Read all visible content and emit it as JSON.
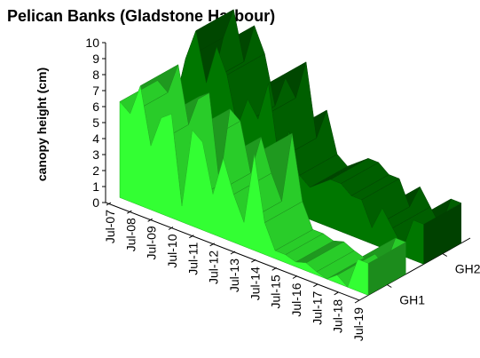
{
  "chart_data": {
    "type": "area3d",
    "title": "Pelican Banks (Gladstone Harbour)",
    "y_label": "canopy height (cm)",
    "categories": [
      "Jul-07",
      null,
      "Jul-08",
      null,
      "Jul-09",
      null,
      "Jul-10",
      null,
      "Jul-11",
      null,
      "Jul-12",
      null,
      "Jul-13",
      null,
      "Jul-14",
      null,
      "Jul-15",
      null,
      "Jul-16",
      null,
      "Jul-17",
      null,
      "Jul-18",
      null,
      "Jul-19"
    ],
    "series": [
      {
        "name": "GH1",
        "color": "#33ff33",
        "values": [
          6,
          5.5,
          7.5,
          4,
          6,
          6.5,
          1,
          6,
          5.5,
          2.5,
          5,
          3,
          1.5,
          6,
          2,
          0.5,
          0.5,
          0.3,
          0.5,
          0.2,
          0,
          0.5,
          0,
          2,
          2
        ]
      },
      {
        "name": "GH2",
        "color": "#007700",
        "values": [
          4,
          7,
          9,
          6,
          8.5,
          7,
          4,
          6,
          5,
          7.5,
          3,
          5,
          2.5,
          2,
          2.5,
          3,
          3,
          2.5,
          2.5,
          1,
          2.5,
          1.5,
          0.5,
          2.5,
          2.5
        ]
      }
    ],
    "ylim": [
      0,
      10
    ],
    "yticks": [
      0,
      1,
      2,
      3,
      4,
      5,
      6,
      7,
      8,
      9,
      10
    ]
  }
}
